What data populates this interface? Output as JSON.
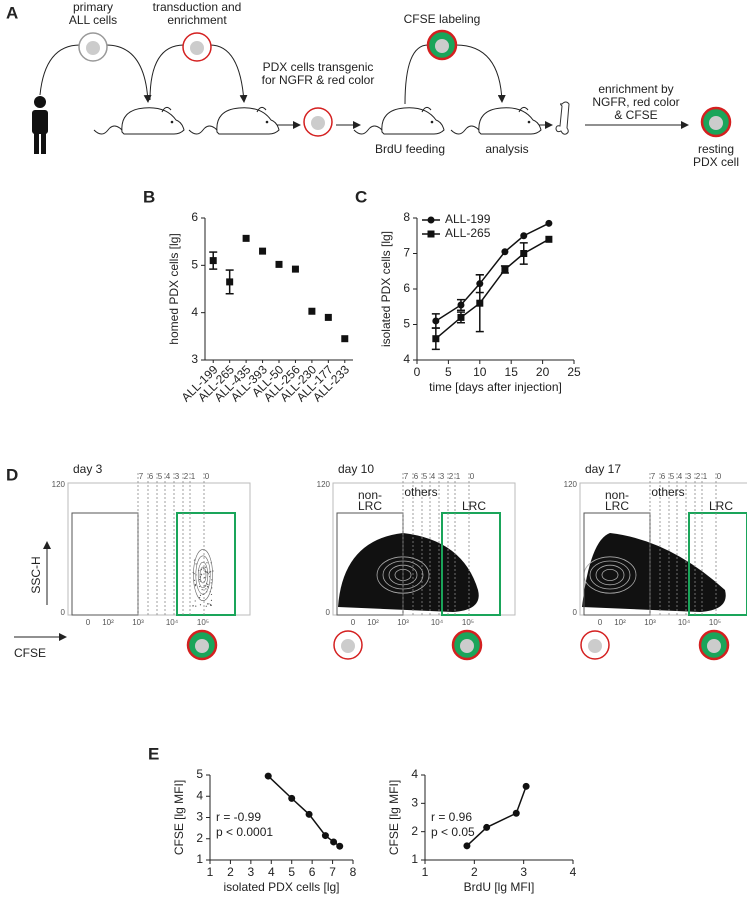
{
  "panel_a": {
    "label": "A",
    "step1": [
      "primary",
      "ALL cells"
    ],
    "step2": [
      "transduction and",
      "enrichment"
    ],
    "step3": [
      "PDX cells transgenic",
      "for NGFR & red color"
    ],
    "step4": "CFSE labeling",
    "step5": "BrdU feeding",
    "step6": "analysis",
    "step7": [
      "enrichment by",
      "NGFR, red color",
      "& CFSE"
    ],
    "result": [
      "resting",
      "PDX cell"
    ]
  },
  "chart_data": [
    {
      "type": "dot",
      "panel": "B",
      "y_label": "homed PDX cells [lg]",
      "categories": [
        "ALL-199",
        "ALL-265",
        "ALL-435",
        "ALL-393",
        "ALL-50",
        "ALL-256",
        "ALL-230",
        "ALL-177",
        "ALL-233"
      ],
      "values": [
        5.1,
        4.65,
        5.57,
        5.3,
        5.02,
        4.92,
        4.03,
        3.9,
        3.45
      ],
      "errors": [
        0.18,
        0.25,
        null,
        null,
        null,
        null,
        null,
        null,
        null
      ],
      "marker": "square",
      "color": "#111111",
      "ylim": [
        3,
        6
      ],
      "yticks": [
        3,
        4,
        5,
        6
      ]
    },
    {
      "type": "line",
      "panel": "C",
      "y_label": "isolated PDX cells [lg]",
      "x_label": "time [days after injection]",
      "x": [
        3,
        7,
        10,
        14,
        17,
        21
      ],
      "series": [
        {
          "name": "ALL-199",
          "color": "#111111",
          "marker": "circle",
          "values": [
            5.1,
            5.55,
            6.15,
            7.05,
            7.5,
            7.85
          ],
          "errors": [
            0.2,
            0.15,
            0.25,
            null,
            null,
            null
          ]
        },
        {
          "name": "ALL-265",
          "color": "#111111",
          "marker": "square",
          "values": [
            4.6,
            5.2,
            5.6,
            6.55,
            7.0,
            7.4
          ],
          "errors": [
            0.3,
            0.15,
            0.8,
            0.1,
            0.3,
            null
          ]
        }
      ],
      "xlim": [
        0,
        25
      ],
      "xticks": [
        0,
        5,
        10,
        15,
        20,
        25
      ],
      "ylim": [
        4,
        8
      ],
      "yticks": [
        4,
        5,
        6,
        7,
        8
      ],
      "legend": "top-left"
    },
    {
      "type": "line",
      "panel": "E",
      "y_label": "CFSE  [lg MFI]",
      "x_label": "isolated PDX cells [lg]",
      "annotations": [
        "r = -0.99",
        "p < 0.0001"
      ],
      "x": [
        3.85,
        5.0,
        5.85,
        6.65,
        7.05,
        7.35
      ],
      "values": [
        4.95,
        3.9,
        3.15,
        2.15,
        1.85,
        1.65
      ],
      "marker": "circle",
      "color": "#111111",
      "xlim": [
        1,
        8
      ],
      "xticks": [
        1,
        2,
        3,
        4,
        5,
        6,
        7,
        8
      ],
      "ylim": [
        1,
        5
      ],
      "yticks": [
        1,
        2,
        3,
        4,
        5
      ]
    },
    {
      "type": "line",
      "y_label": "CFSE  [lg MFI]",
      "x_label": "BrdU [lg MFI]",
      "annotations": [
        "r = 0.96",
        "p < 0.05"
      ],
      "x": [
        1.85,
        2.25,
        2.85,
        3.05
      ],
      "values": [
        1.5,
        2.15,
        2.65,
        3.6
      ],
      "marker": "circle",
      "color": "#111111",
      "xlim": [
        1,
        4
      ],
      "xticks": [
        1,
        2,
        3,
        4
      ],
      "ylim": [
        1,
        4
      ],
      "yticks": [
        1,
        2,
        3,
        4
      ]
    }
  ],
  "panel_d": {
    "label": "D",
    "y_axis_label": "SSC-H",
    "x_axis_label": "CFSE",
    "x_tick_labels": [
      "0",
      "10²",
      "10³",
      "10⁴",
      "10⁵"
    ],
    "y_tick_labels": [
      "120",
      "0"
    ],
    "plots": [
      {
        "title": "day 3",
        "gates": [
          "7",
          "6",
          "5",
          "4",
          "3",
          "2",
          "1",
          "0"
        ]
      },
      {
        "title": "day 10",
        "gates": [
          "7",
          "6",
          "5",
          "4",
          "3",
          "2",
          "1",
          "0"
        ],
        "regions": [
          [
            "non-",
            "LRC"
          ],
          "others",
          "LRC"
        ]
      },
      {
        "title": "day 17",
        "gates": [
          "7",
          "6",
          "5",
          "4",
          "3",
          "2",
          "1",
          "0"
        ],
        "regions": [
          [
            "non-",
            "LRC"
          ],
          "others",
          "LRC"
        ]
      }
    ]
  }
}
